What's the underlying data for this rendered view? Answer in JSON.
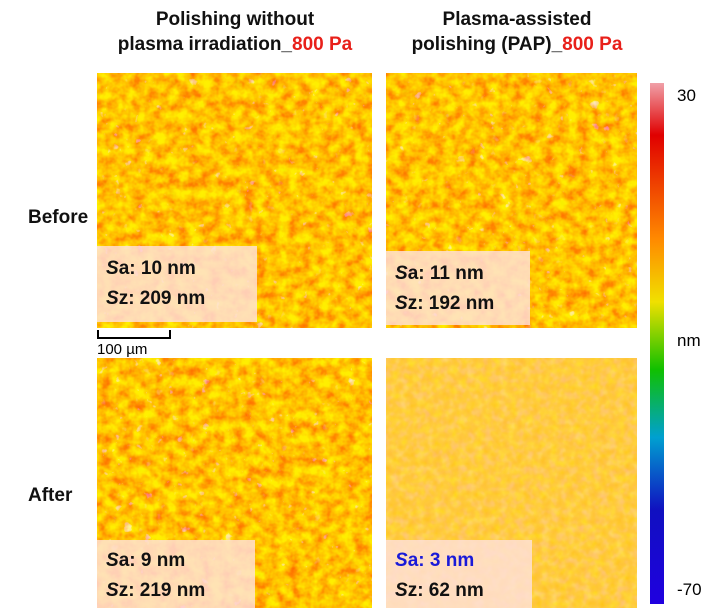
{
  "columns": [
    {
      "line1": "Polishing without",
      "line2": "plasma irradiation_",
      "pressure": "800 Pa"
    },
    {
      "line1": "Plasma-assisted",
      "line2": "polishing (PAP)_",
      "pressure": "800 Pa"
    }
  ],
  "rows": [
    "Before",
    "After"
  ],
  "sa_label": "Sa:",
  "sz_label": "Sz:",
  "panels": [
    {
      "sa": "10 nm",
      "sz": "209 nm"
    },
    {
      "sa": "11 nm",
      "sz": "192 nm"
    },
    {
      "sa": "9 nm",
      "sz": "219 nm"
    },
    {
      "sa": "3 nm",
      "sz": "62 nm",
      "sa_color": "#1a1ad8"
    }
  ],
  "scale_bar": "100 µm",
  "colorbar": {
    "max": 30,
    "unit": "nm",
    "min": -70
  }
}
